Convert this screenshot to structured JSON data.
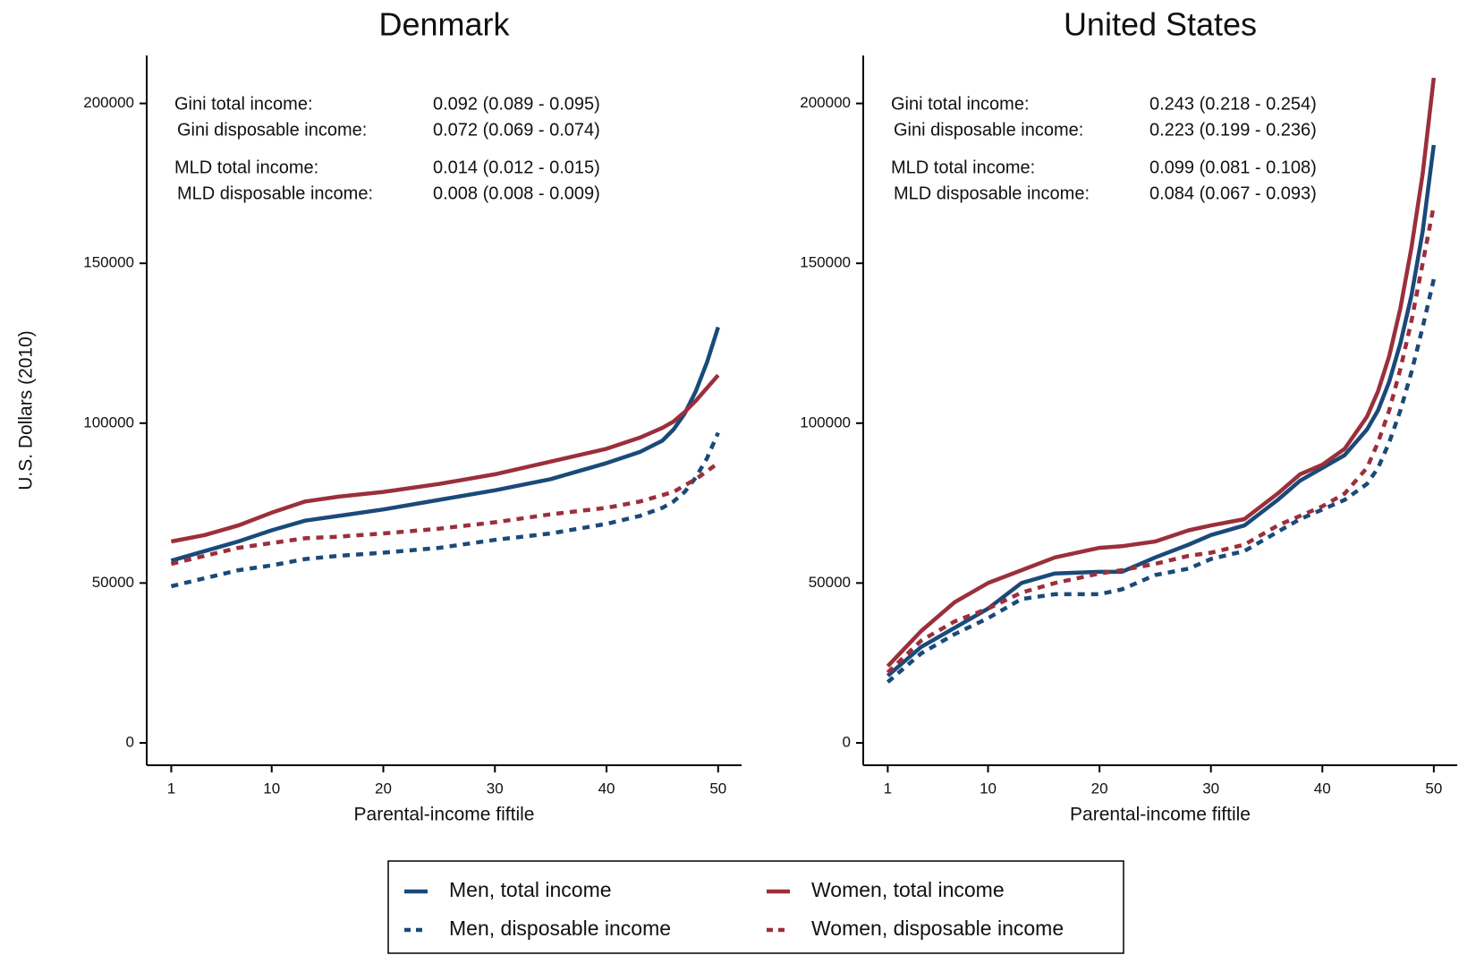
{
  "chart_data": [
    {
      "type": "line",
      "title": "Denmark",
      "ylabel": "U.S. Dollars (2010)",
      "xlabel": "Parental-income fiftile",
      "xlim": [
        -1.2,
        52.1
      ],
      "xticks": [
        1,
        10,
        20,
        30,
        40,
        50
      ],
      "ylim": [
        -7000,
        215000
      ],
      "yticks": [
        0,
        50000,
        100000,
        150000,
        200000
      ],
      "stats": [
        {
          "label": "Gini total income:",
          "value": "0.092 (0.089 - 0.095)"
        },
        {
          "label": "Gini disposable income:",
          "value": "0.072 (0.069 - 0.074)"
        },
        {
          "label": "MLD total income:",
          "value": "0.014 (0.012 - 0.015)"
        },
        {
          "label": "MLD disposable income:",
          "value": "0.008 (0.008 - 0.009)"
        }
      ],
      "x": [
        1,
        4,
        7,
        10,
        13,
        16,
        20,
        25,
        30,
        35,
        40,
        43,
        45,
        46,
        47,
        48,
        49,
        50
      ],
      "series": [
        {
          "name": "Men, total income",
          "color": "#1a4a7a",
          "dashed": false,
          "values": [
            57000,
            60000,
            63000,
            66500,
            69500,
            71000,
            73000,
            76000,
            79000,
            82500,
            87500,
            91000,
            94500,
            98000,
            103000,
            110000,
            119000,
            130000
          ]
        },
        {
          "name": "Women, total income",
          "color": "#9b2f3b",
          "dashed": false,
          "values": [
            63000,
            65000,
            68000,
            72000,
            75500,
            77000,
            78500,
            81000,
            84000,
            88000,
            92000,
            95500,
            98500,
            100500,
            103500,
            107000,
            111000,
            115000
          ]
        },
        {
          "name": "Men, disposable income",
          "color": "#1a4a7a",
          "dashed": true,
          "values": [
            49000,
            51500,
            54000,
            55500,
            57500,
            58500,
            59500,
            61000,
            63500,
            65500,
            68500,
            71000,
            73500,
            75500,
            78500,
            83000,
            89000,
            97000
          ]
        },
        {
          "name": "Women, disposable income",
          "color": "#9b2f3b",
          "dashed": true,
          "values": [
            56000,
            58500,
            61000,
            62500,
            64000,
            64500,
            65500,
            67000,
            69000,
            71500,
            73500,
            75500,
            77500,
            78500,
            80500,
            82500,
            85000,
            87500
          ]
        }
      ]
    },
    {
      "type": "line",
      "title": "United States",
      "xlabel": "Parental-income fiftile",
      "xlim": [
        -1.2,
        52.1
      ],
      "xticks": [
        1,
        10,
        20,
        30,
        40,
        50
      ],
      "ylim": [
        -7000,
        215000
      ],
      "yticks": [
        0,
        50000,
        100000,
        150000,
        200000
      ],
      "stats": [
        {
          "label": "Gini total income:",
          "value": "0.243 (0.218 - 0.254)"
        },
        {
          "label": "Gini disposable income:",
          "value": "0.223 (0.199 - 0.236)"
        },
        {
          "label": "MLD total income:",
          "value": "0.099 (0.081 - 0.108)"
        },
        {
          "label": "MLD disposable income:",
          "value": "0.084 (0.067 - 0.093)"
        }
      ],
      "x": [
        1,
        4,
        7,
        10,
        13,
        16,
        20,
        22,
        25,
        28,
        30,
        33,
        36,
        38,
        40,
        42,
        44,
        45,
        46,
        47,
        48,
        49,
        50
      ],
      "series": [
        {
          "color": "#1a4a7a",
          "dashed": false,
          "values": [
            21000,
            30000,
            36000,
            42000,
            50000,
            53000,
            53500,
            53500,
            58000,
            62000,
            65000,
            68000,
            76000,
            82000,
            86000,
            90000,
            98000,
            104000,
            113000,
            125000,
            140000,
            160000,
            187000
          ]
        },
        {
          "color": "#9b2f3b",
          "dashed": false,
          "values": [
            24000,
            35000,
            44000,
            50000,
            54000,
            58000,
            61000,
            61500,
            63000,
            66500,
            68000,
            70000,
            78000,
            84000,
            87000,
            92000,
            102000,
            110000,
            121000,
            136000,
            155000,
            178000,
            208000
          ]
        },
        {
          "color": "#1a4a7a",
          "dashed": true,
          "values": [
            19000,
            28000,
            34000,
            39000,
            45000,
            46500,
            46500,
            48000,
            52500,
            54500,
            57500,
            60000,
            66000,
            70000,
            73000,
            76000,
            81000,
            86000,
            94000,
            104000,
            116000,
            130000,
            145000
          ]
        },
        {
          "color": "#9b2f3b",
          "dashed": true,
          "values": [
            22000,
            32000,
            38000,
            42000,
            47000,
            50000,
            53000,
            54000,
            56000,
            58500,
            59500,
            62000,
            68000,
            71000,
            74000,
            78000,
            86000,
            94000,
            104000,
            117000,
            132000,
            150000,
            168000
          ]
        }
      ]
    }
  ]
}
